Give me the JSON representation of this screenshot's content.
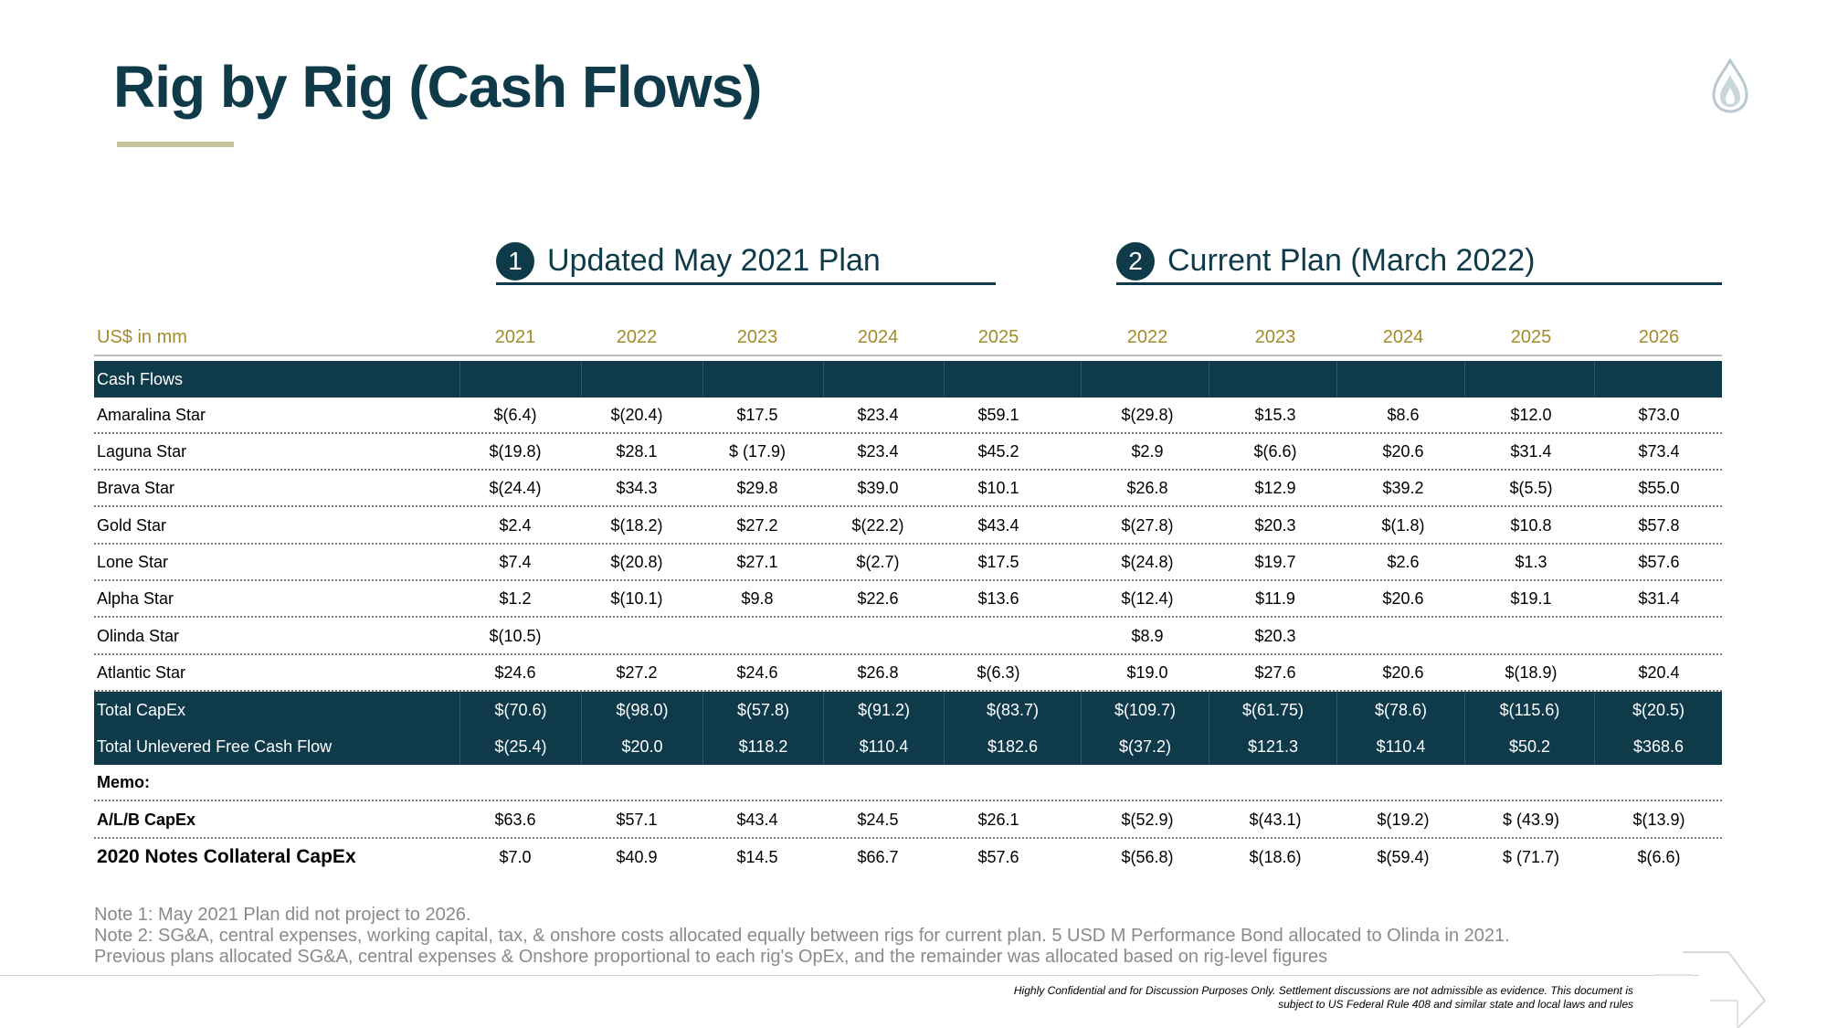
{
  "title": "Rig by Rig (Cash Flows)",
  "plans": [
    {
      "number": "1",
      "title": "Updated May 2021 Plan"
    },
    {
      "number": "2",
      "title": "Current Plan (March 2022)"
    }
  ],
  "table": {
    "unit_label": "US$ in mm",
    "years": [
      "2021",
      "2022",
      "2023",
      "2024",
      "2025",
      "2022",
      "2023",
      "2024",
      "2025",
      "2026"
    ],
    "section_label": "Cash Flows",
    "rows": [
      {
        "label": "Amaralina Star",
        "values": [
          "$(6.4)",
          "$(20.4)",
          "$17.5",
          "$23.4",
          "$59.1",
          "$(29.8)",
          "$15.3",
          "$8.6",
          "$12.0",
          "$73.0"
        ]
      },
      {
        "label": "Laguna Star",
        "values": [
          "$(19.8)",
          "$28.1",
          "$ (17.9)",
          "$23.4",
          "$45.2",
          "$2.9",
          "$(6.6)",
          "$20.6",
          "$31.4",
          "$73.4"
        ]
      },
      {
        "label": "Brava Star",
        "values": [
          "$(24.4)",
          "$34.3",
          "$29.8",
          "$39.0",
          "$10.1",
          "$26.8",
          "$12.9",
          "$39.2",
          "$(5.5)",
          "$55.0"
        ]
      },
      {
        "label": "Gold Star",
        "values": [
          "$2.4",
          "$(18.2)",
          "$27.2",
          "$(22.2)",
          "$43.4",
          "$(27.8)",
          "$20.3",
          "$(1.8)",
          "$10.8",
          "$57.8"
        ]
      },
      {
        "label": "Lone Star",
        "values": [
          "$7.4",
          "$(20.8)",
          "$27.1",
          "$(2.7)",
          "$17.5",
          "$(24.8)",
          "$19.7",
          "$2.6",
          "$1.3",
          "$57.6"
        ]
      },
      {
        "label": "Alpha Star",
        "values": [
          "$1.2",
          "$(10.1)",
          "$9.8",
          "$22.6",
          "$13.6",
          "$(12.4)",
          "$11.9",
          "$20.6",
          "$19.1",
          "$31.4"
        ]
      },
      {
        "label": "Olinda Star",
        "values": [
          "$(10.5)",
          "",
          "",
          "",
          "",
          "$8.9",
          "$20.3",
          "",
          "",
          ""
        ]
      },
      {
        "label": "Atlantic Star",
        "values": [
          "$24.6",
          "$27.2",
          "$24.6",
          "$26.8",
          "$(6.3)",
          "$19.0",
          "$27.6",
          "$20.6",
          "$(18.9)",
          "$20.4"
        ]
      }
    ],
    "totals": [
      {
        "label": "Total CapEx",
        "values": [
          "$(70.6)",
          "$(98.0)",
          "$(57.8)",
          "$(91.2)",
          "$(83.7)",
          "$(109.7)",
          "$(61.75)",
          "$(78.6)",
          "$(115.6)",
          "$(20.5)"
        ]
      },
      {
        "label": "Total Unlevered Free Cash Flow",
        "values": [
          "$(25.4)",
          "$20.0",
          "$118.2",
          "$110.4",
          "$182.6",
          "$(37.2)",
          "$121.3",
          "$110.4",
          "$50.2",
          "$368.6"
        ]
      }
    ],
    "memo_label": "Memo:",
    "memo": [
      {
        "label": "A/L/B CapEx",
        "values": [
          "$63.6",
          "$57.1",
          "$43.4",
          "$24.5",
          "$26.1",
          "$(52.9)",
          "$(43.1)",
          "$(19.2)",
          "$ (43.9)",
          "$(13.9)"
        ]
      },
      {
        "label": "2020 Notes Collateral CapEx",
        "values": [
          "$7.0",
          "$40.9",
          "$14.5",
          "$66.7",
          "$57.6",
          "$(56.8)",
          "$(18.6)",
          "$(59.4)",
          "$ (71.7)",
          "$(6.6)"
        ]
      }
    ]
  },
  "notes": [
    "Note 1: May 2021 Plan did not project to 2026.",
    "Note 2: SG&A, central expenses, working capital, tax, & onshore costs allocated equally between rigs for current plan. 5 USD M Performance Bond allocated to Olinda in 2021.",
    "Previous plans allocated SG&A, central expenses & Onshore proportional to each rig's OpEx, and the remainder was allocated based on rig-level figures"
  ],
  "disclaimer": [
    "Highly Confidential and for Discussion Purposes Only. Settlement discussions are not admissible as evidence. This document  is",
    "subject to US Federal Rule 408 and similar state and local laws and rules"
  ],
  "colors": {
    "brand_dark": "#0f3a4a",
    "accent_gold": "#a58b2a",
    "rule_tan": "#c6c29a"
  },
  "icons": {
    "logo": "flame-drop-logo-icon"
  }
}
